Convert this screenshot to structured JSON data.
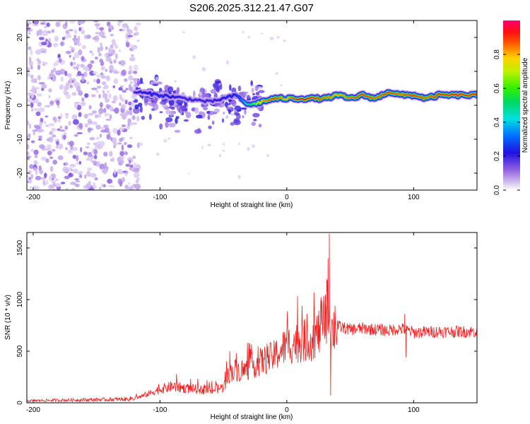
{
  "figure_title": "S206.2025.312.21.47.G07",
  "colors": {
    "snr_line": "#ee2020",
    "axis": "#000000",
    "background": "#ffffff"
  },
  "chart_data": [
    {
      "type": "heatmap",
      "name": "spectrogram",
      "title": "S206.2025.312.21.47.G07",
      "xlabel": "Height of straight line (km)",
      "ylabel": "Frequency (Hz)",
      "xlim": [
        -205,
        150
      ],
      "ylim": [
        -25,
        25
      ],
      "x_ticks": [
        -200,
        -100,
        0,
        100
      ],
      "x_tick_labels": [
        "-200",
        "-100",
        "0",
        "100"
      ],
      "y_ticks": [
        20,
        10,
        0,
        -10,
        -20
      ],
      "y_tick_labels": [
        "20",
        "10",
        "0",
        "-10",
        "-20"
      ],
      "colorbar": {
        "label": "Normalized spectral amplitude",
        "range": [
          0,
          1
        ],
        "ticks": [
          0.0,
          0.2,
          0.4,
          0.6,
          0.8
        ],
        "tick_labels": [
          "0.0",
          "0.2",
          "0.4",
          "0.6",
          "0.8"
        ]
      },
      "description_points": {
        "noise_region_x": [
          -205,
          -120
        ],
        "ridge": {
          "x": [
            -120,
            -100,
            -80,
            -60,
            -40,
            -30,
            -20,
            -10,
            0,
            10,
            20,
            30,
            40,
            50,
            60,
            70,
            80,
            90,
            100,
            110,
            120,
            130,
            140,
            150
          ],
          "freq_hz": [
            4,
            3,
            2,
            1,
            3,
            0,
            1,
            2,
            2,
            2,
            2,
            2,
            3,
            2,
            3,
            2,
            4,
            3,
            3,
            2,
            3,
            3,
            3,
            3
          ],
          "amplitude": [
            0.2,
            0.25,
            0.2,
            0.2,
            0.25,
            0.5,
            0.8,
            0.9,
            0.8,
            0.95,
            0.9,
            0.85,
            0.8,
            0.85,
            0.9,
            0.85,
            0.9,
            0.85,
            0.9,
            0.85,
            0.9,
            0.9,
            0.9,
            0.9
          ]
        }
      }
    },
    {
      "type": "line",
      "name": "snr",
      "xlabel": "Height of straight line (km)",
      "ylabel": "SNR (10 * v/v)",
      "xlim": [
        -205,
        150
      ],
      "ylim": [
        0,
        1650
      ],
      "x_ticks": [
        -200,
        -100,
        0,
        100
      ],
      "x_tick_labels": [
        "-200",
        "-100",
        "0",
        "100"
      ],
      "y_ticks": [
        0,
        500,
        1000,
        1500
      ],
      "y_tick_labels": [
        "0",
        "500",
        "1000",
        "1500"
      ],
      "envelope": {
        "x": [
          -205,
          -180,
          -150,
          -125,
          -115,
          -100,
          -90,
          -80,
          -60,
          -50,
          -45,
          -40,
          -35,
          -30,
          -20,
          -10,
          0,
          10,
          20,
          25,
          30,
          33,
          35,
          40,
          50,
          60,
          80,
          90,
          100,
          120,
          150
        ],
        "y": [
          20,
          25,
          30,
          35,
          60,
          130,
          160,
          140,
          120,
          150,
          300,
          320,
          300,
          340,
          400,
          450,
          560,
          590,
          620,
          680,
          800,
          950,
          700,
          740,
          710,
          720,
          700,
          720,
          680,
          690,
          690
        ]
      },
      "spikes": [
        {
          "x": 33.5,
          "y": 1640
        },
        {
          "x": 32.5,
          "y": 1400
        },
        {
          "x": 31.5,
          "y": 1200
        },
        {
          "x": 30.5,
          "y": 1050
        },
        {
          "x": 34.5,
          "y": 70
        },
        {
          "x": 38,
          "y": 940
        },
        {
          "x": 93,
          "y": 860
        },
        {
          "x": 94,
          "y": 440
        },
        {
          "x": -87,
          "y": 280
        },
        {
          "x": -45,
          "y": 500
        }
      ]
    }
  ]
}
